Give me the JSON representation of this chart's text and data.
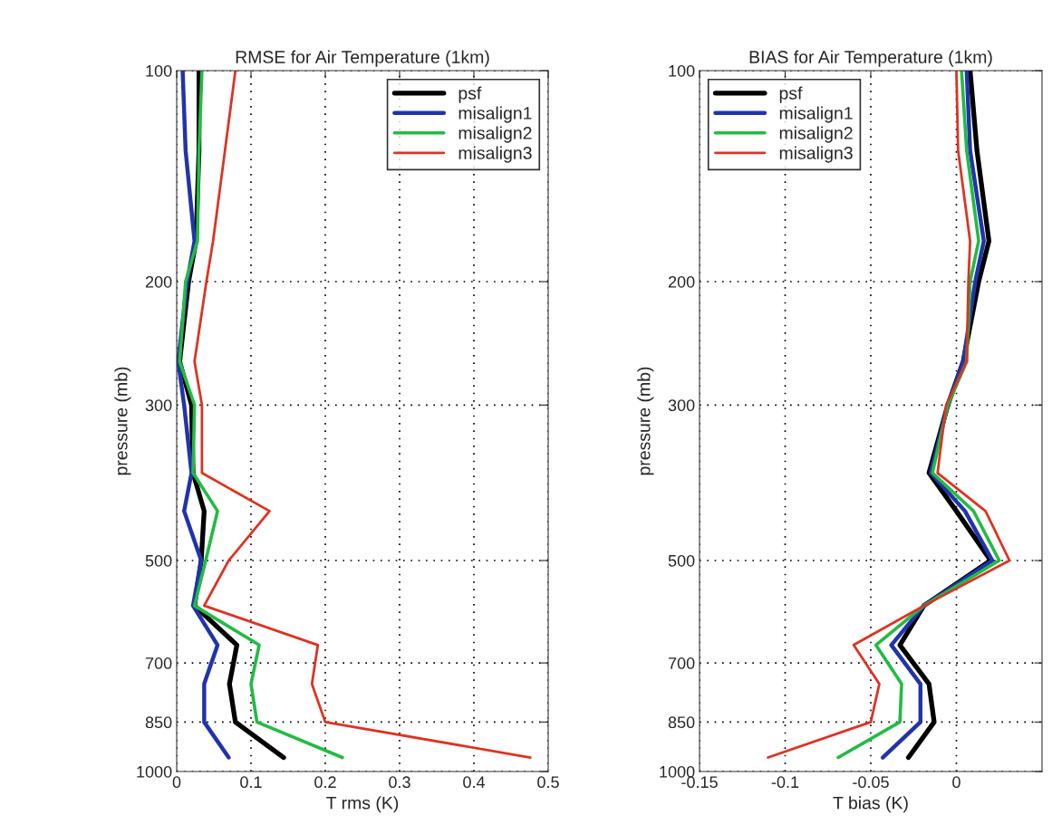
{
  "chart_data": [
    {
      "type": "line",
      "title": "RMSE for Air Temperature (1km)",
      "xlabel": "T rms (K)",
      "ylabel": "pressure (mb)",
      "log": "y",
      "xlim": [
        0,
        0.5
      ],
      "xticks": [
        0,
        0.1,
        0.2,
        0.3,
        0.4,
        0.5
      ],
      "ylim": [
        1000,
        100
      ],
      "yticks": [
        100,
        200,
        300,
        500,
        700,
        850,
        1000
      ],
      "grid": true,
      "legend": "top right",
      "line_style": "solid",
      "marker": "none",
      "series": [
        {
          "name": "psf",
          "color": "#000000",
          "x": [
            0.03,
            0.03,
            0.026,
            0.016,
            0.004,
            0.02,
            0.022,
            0.037,
            0.033,
            0.024,
            0.081,
            0.071,
            0.079,
            0.144
          ],
          "values": [
            100,
            130,
            175,
            200,
            260,
            300,
            375,
            425,
            500,
            580,
            660,
            750,
            850,
            955
          ]
        },
        {
          "name": "misalign1",
          "color": "#2233aa",
          "x": [
            0.008,
            0.012,
            0.024,
            0.014,
            0.002,
            0.01,
            0.02,
            0.01,
            0.033,
            0.022,
            0.055,
            0.037,
            0.037,
            0.07
          ],
          "values": [
            100,
            130,
            175,
            200,
            260,
            300,
            375,
            425,
            500,
            580,
            660,
            750,
            850,
            955
          ]
        },
        {
          "name": "misalign2",
          "color": "#22bb44",
          "x": [
            0.034,
            0.03,
            0.028,
            0.012,
            0.004,
            0.024,
            0.022,
            0.055,
            0.039,
            0.024,
            0.111,
            0.1,
            0.108,
            0.223
          ],
          "values": [
            100,
            130,
            175,
            200,
            260,
            300,
            375,
            425,
            500,
            580,
            660,
            750,
            850,
            955
          ]
        },
        {
          "name": "misalign3",
          "color": "#dd3322",
          "x": [
            0.079,
            0.065,
            0.049,
            0.04,
            0.024,
            0.034,
            0.034,
            0.125,
            0.07,
            0.037,
            0.19,
            0.182,
            0.2,
            0.476
          ],
          "values": [
            100,
            130,
            175,
            200,
            260,
            300,
            375,
            425,
            500,
            580,
            660,
            750,
            850,
            955
          ]
        }
      ]
    },
    {
      "type": "line",
      "title": "BIAS for Air Temperature (1km)",
      "xlabel": "T bias (K)",
      "ylabel": "pressure (mb)",
      "log": "y",
      "xlim": [
        -0.15,
        0.05
      ],
      "xticks": [
        -0.15,
        -0.1,
        -0.05,
        0
      ],
      "ylim": [
        1000,
        100
      ],
      "yticks": [
        100,
        200,
        300,
        500,
        700,
        850,
        1000
      ],
      "grid": true,
      "legend": "top left",
      "line_style": "solid",
      "marker": "none",
      "series": [
        {
          "name": "psf",
          "color": "#000000",
          "x": [
            0.008,
            0.012,
            0.019,
            0.013,
            0.004,
            -0.005,
            -0.016,
            0.0,
            0.02,
            -0.019,
            -0.033,
            -0.016,
            -0.013,
            -0.028
          ],
          "values": [
            100,
            130,
            175,
            200,
            260,
            300,
            375,
            425,
            500,
            580,
            660,
            750,
            850,
            955
          ]
        },
        {
          "name": "misalign1",
          "color": "#2233aa",
          "x": [
            0.006,
            0.008,
            0.016,
            0.011,
            0.004,
            -0.005,
            -0.015,
            0.005,
            0.021,
            -0.019,
            -0.038,
            -0.021,
            -0.021,
            -0.043
          ],
          "values": [
            100,
            130,
            175,
            200,
            260,
            300,
            375,
            425,
            500,
            580,
            660,
            750,
            850,
            955
          ]
        },
        {
          "name": "misalign2",
          "color": "#22bb44",
          "x": [
            0.003,
            0.006,
            0.013,
            0.008,
            0.006,
            -0.005,
            -0.014,
            0.01,
            0.025,
            -0.019,
            -0.047,
            -0.032,
            -0.033,
            -0.069
          ],
          "values": [
            100,
            130,
            175,
            200,
            260,
            300,
            375,
            425,
            500,
            580,
            660,
            750,
            850,
            955
          ]
        },
        {
          "name": "misalign3",
          "color": "#dd3322",
          "x": [
            0.0,
            0.001,
            0.008,
            0.007,
            0.006,
            -0.006,
            -0.011,
            0.017,
            0.031,
            -0.019,
            -0.06,
            -0.045,
            -0.05,
            -0.11
          ],
          "values": [
            100,
            130,
            175,
            200,
            260,
            300,
            375,
            425,
            500,
            580,
            660,
            750,
            850,
            955
          ]
        }
      ]
    }
  ]
}
